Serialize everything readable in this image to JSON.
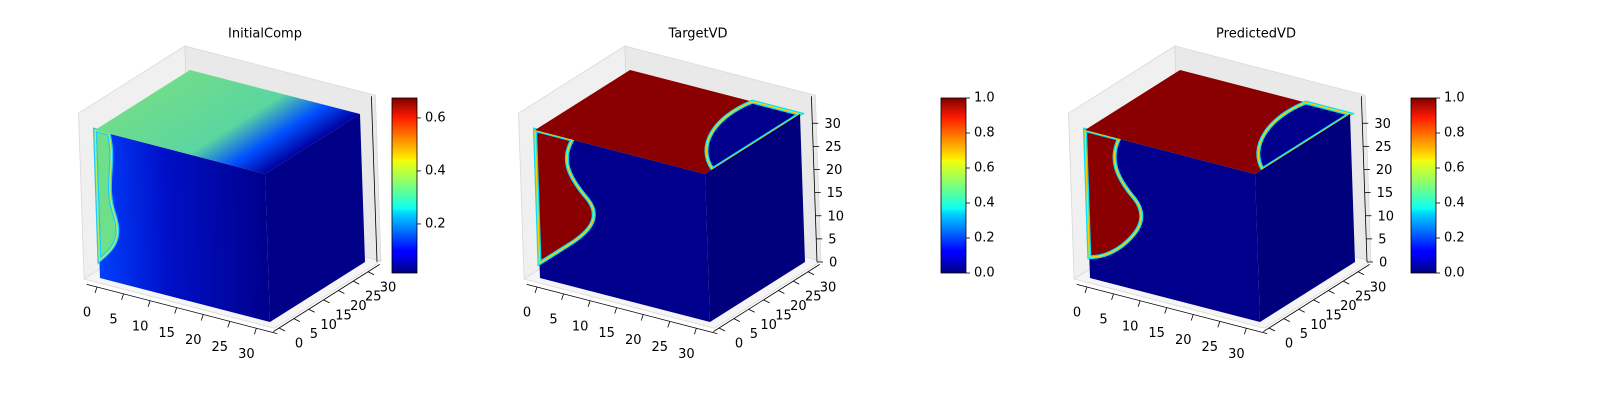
{
  "chart_data": [
    {
      "type": "voxel",
      "title": "InitialComp",
      "colormap": "jet",
      "xlim": [
        0,
        32
      ],
      "xticks": [
        0,
        5,
        10,
        15,
        20,
        25,
        30
      ],
      "ylim": [
        0,
        32
      ],
      "yticks": [
        0,
        5,
        10,
        15,
        20,
        25,
        30
      ],
      "zlim": [
        0,
        32
      ],
      "clim": [
        0.015,
        0.675
      ],
      "cticks": [
        0.2,
        0.4,
        0.6
      ]
    },
    {
      "type": "voxel",
      "title": "TargetVD",
      "colormap": "jet",
      "xlim": [
        0,
        32
      ],
      "xticks": [
        0,
        5,
        10,
        15,
        20,
        25,
        30
      ],
      "ylim": [
        0,
        32
      ],
      "yticks": [
        0,
        5,
        10,
        15,
        20,
        25,
        30
      ],
      "zlim": [
        0,
        32
      ],
      "zticks": [
        0,
        5,
        10,
        15,
        20,
        25,
        30
      ],
      "clim": [
        0,
        1
      ],
      "cticks": [
        {
          "value": 0,
          "label": "0.0"
        },
        0.2,
        0.4,
        0.6,
        0.8,
        {
          "value": 1,
          "label": "1.0"
        }
      ]
    },
    {
      "type": "voxel",
      "title": "PredictedVD",
      "colormap": "jet",
      "xlim": [
        0,
        32
      ],
      "xticks": [
        0,
        5,
        10,
        15,
        20,
        25,
        30
      ],
      "ylim": [
        0,
        32
      ],
      "yticks": [
        0,
        5,
        10,
        15,
        20,
        25,
        30
      ],
      "zlim": [
        0,
        32
      ],
      "zticks": [
        0,
        5,
        10,
        15,
        20,
        25,
        30
      ],
      "clim": [
        0,
        1
      ],
      "cticks": [
        {
          "value": 0,
          "label": "0.0"
        },
        0.2,
        0.4,
        0.6,
        0.8,
        {
          "value": 1,
          "label": "1.0"
        }
      ]
    }
  ]
}
